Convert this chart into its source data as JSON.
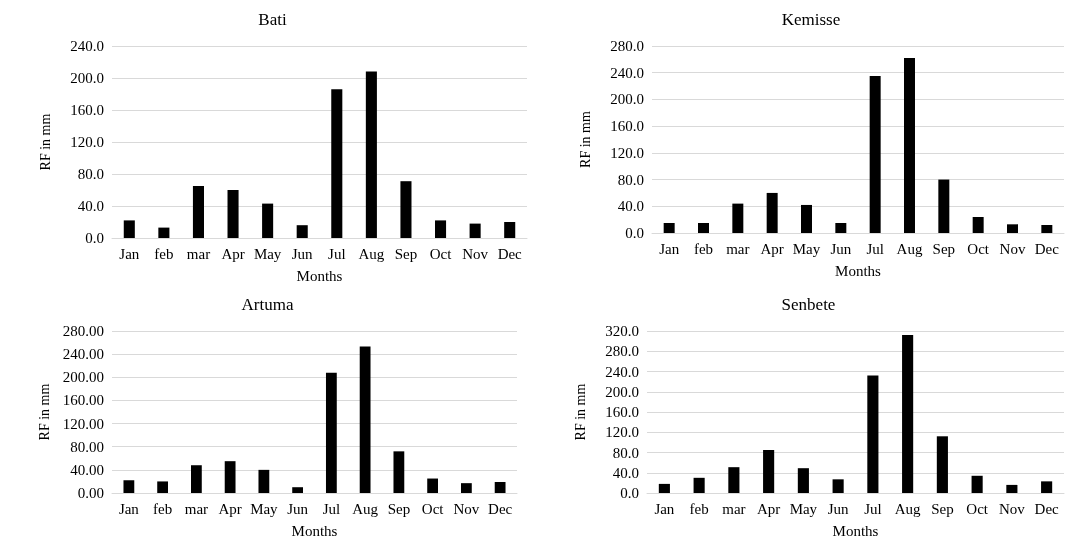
{
  "chart_data": [
    {
      "type": "bar",
      "title": "Bati",
      "xlabel": "Months",
      "ylabel": "RF in mm",
      "categories": [
        "Jan",
        "feb",
        "mar",
        "Apr",
        "May",
        "Jun",
        "Jul",
        "Aug",
        "Sep",
        "Oct",
        "Nov",
        "Dec"
      ],
      "values": [
        22,
        13,
        65,
        60,
        43,
        16,
        186,
        208,
        71,
        22,
        18,
        20
      ],
      "color": "#000000",
      "ylim": [
        0,
        240
      ],
      "yticks": [
        {
          "value": 0,
          "label": "0.0"
        },
        {
          "value": 40,
          "label": "40.0"
        },
        {
          "value": 80,
          "label": "80.0"
        },
        {
          "value": 120,
          "label": "120.0"
        },
        {
          "value": 160,
          "label": "160.0"
        },
        {
          "value": 200,
          "label": "200.0"
        },
        {
          "value": 240,
          "label": "240.0"
        }
      ],
      "grid": "y"
    },
    {
      "type": "bar",
      "title": "Kemisse",
      "xlabel": "Months",
      "ylabel": "RF in mm",
      "categories": [
        "Jan",
        "feb",
        "mar",
        "Apr",
        "May",
        "Jun",
        "Jul",
        "Aug",
        "Sep",
        "Oct",
        "Nov",
        "Dec"
      ],
      "values": [
        15,
        15,
        44,
        60,
        42,
        15,
        235,
        262,
        80,
        24,
        13,
        12
      ],
      "color": "#000000",
      "ylim": [
        0,
        280
      ],
      "yticks": [
        {
          "value": 0,
          "label": "0.0"
        },
        {
          "value": 40,
          "label": "40.0"
        },
        {
          "value": 80,
          "label": "80.0"
        },
        {
          "value": 120,
          "label": "120.0"
        },
        {
          "value": 160,
          "label": "160.0"
        },
        {
          "value": 200,
          "label": "200.0"
        },
        {
          "value": 240,
          "label": "240.0"
        },
        {
          "value": 280,
          "label": "280.0"
        }
      ],
      "grid": "y"
    },
    {
      "type": "bar",
      "title": "Artuma",
      "xlabel": "Months",
      "ylabel": "RF in mm",
      "categories": [
        "Jan",
        "feb",
        "mar",
        "Apr",
        "May",
        "Jun",
        "Jul",
        "Aug",
        "Sep",
        "Oct",
        "Nov",
        "Dec"
      ],
      "values": [
        22,
        20,
        48,
        55,
        40,
        10,
        208,
        253,
        72,
        25,
        17,
        19
      ],
      "color": "#000000",
      "ylim": [
        0,
        280
      ],
      "yticks": [
        {
          "value": 0,
          "label": "0.00"
        },
        {
          "value": 40,
          "label": "40.00"
        },
        {
          "value": 80,
          "label": "80.00"
        },
        {
          "value": 120,
          "label": "120.00"
        },
        {
          "value": 160,
          "label": "160.00"
        },
        {
          "value": 200,
          "label": "200.00"
        },
        {
          "value": 240,
          "label": "240.00"
        },
        {
          "value": 280,
          "label": "280.00"
        }
      ],
      "grid": "y"
    },
    {
      "type": "bar",
      "title": "Senbete",
      "xlabel": "Months",
      "ylabel": "RF in mm",
      "categories": [
        "Jan",
        "feb",
        "mar",
        "Apr",
        "May",
        "Jun",
        "Jul",
        "Aug",
        "Sep",
        "Oct",
        "Nov",
        "Dec"
      ],
      "values": [
        18,
        30,
        51,
        85,
        49,
        27,
        232,
        312,
        112,
        34,
        16,
        23
      ],
      "color": "#000000",
      "ylim": [
        0,
        320
      ],
      "yticks": [
        {
          "value": 0,
          "label": "0.0"
        },
        {
          "value": 40,
          "label": "40.0"
        },
        {
          "value": 80,
          "label": "80.0"
        },
        {
          "value": 120,
          "label": "120.0"
        },
        {
          "value": 160,
          "label": "160.0"
        },
        {
          "value": 200,
          "label": "200.0"
        },
        {
          "value": 240,
          "label": "240.0"
        },
        {
          "value": 280,
          "label": "280.0"
        },
        {
          "value": 320,
          "label": "320.0"
        }
      ],
      "grid": "y"
    }
  ]
}
